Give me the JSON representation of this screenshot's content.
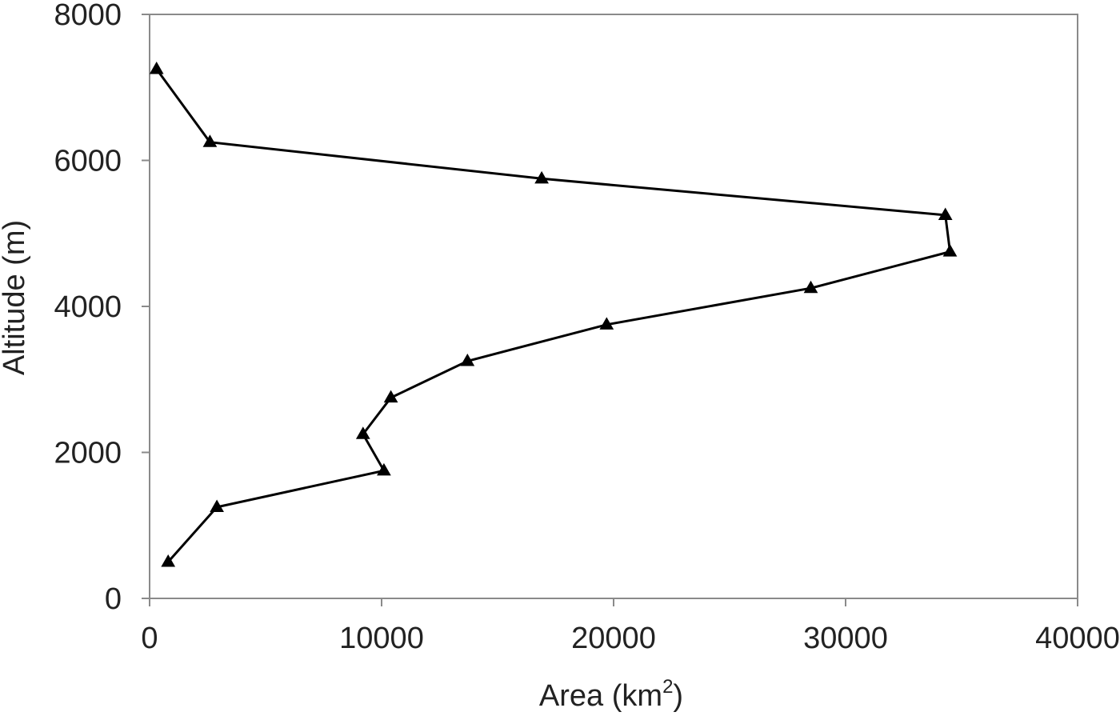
{
  "chart_data": {
    "type": "line",
    "title": "",
    "xlabel": "Area (km",
    "xlabel_sup": "2",
    "xlabel_close": ")",
    "ylabel": "Altitude (m)",
    "xlim": [
      0,
      40000
    ],
    "ylim": [
      0,
      8000
    ],
    "x_ticks": [
      "0",
      "10000",
      "20000",
      "30000",
      "40000"
    ],
    "y_ticks": [
      "0",
      "2000",
      "4000",
      "6000",
      "8000"
    ],
    "grid": false,
    "legend": "none",
    "line_color": "#000000",
    "marker": "triangle",
    "series": [
      {
        "x": [
          800,
          2900,
          10100,
          9200,
          10400,
          13700,
          19700,
          28500,
          34500,
          34300,
          16900,
          2600,
          300
        ],
        "y": [
          500,
          1250,
          1750,
          2250,
          2750,
          3250,
          3750,
          4250,
          4750,
          5250,
          5750,
          6250,
          7250
        ]
      }
    ]
  }
}
